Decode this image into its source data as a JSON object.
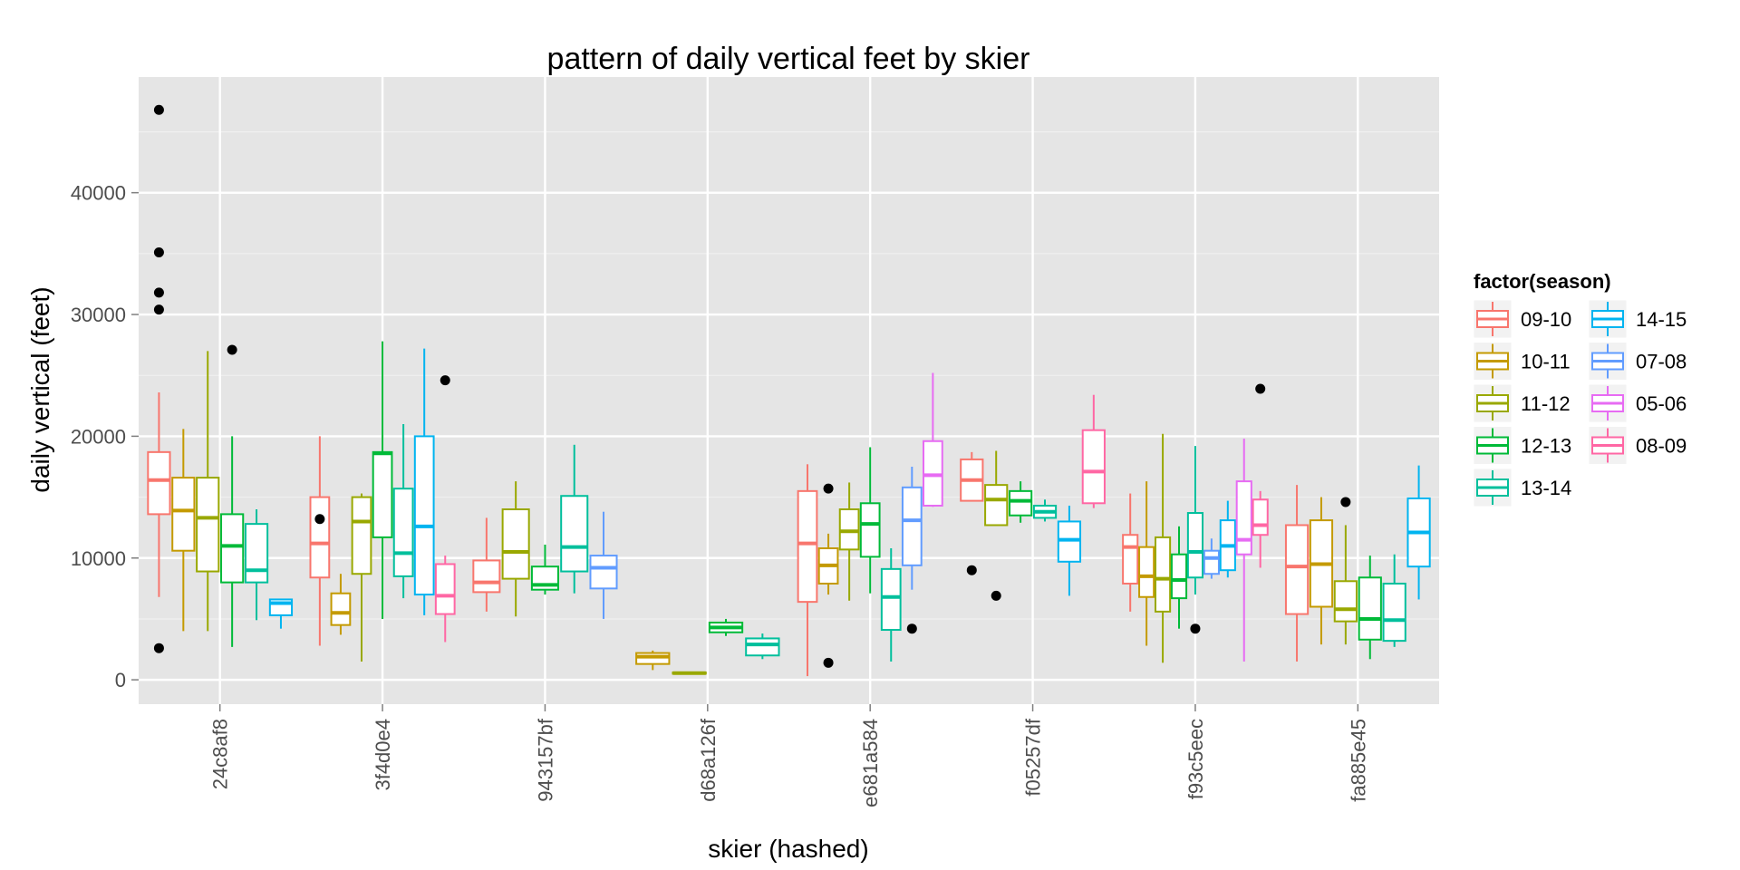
{
  "chart_data": {
    "type": "boxplot",
    "title": "pattern of daily vertical feet by skier",
    "xlabel": "skier (hashed)",
    "ylabel": "daily vertical (feet)",
    "ylim": [
      -2000,
      49500
    ],
    "yticks": [
      0,
      10000,
      20000,
      30000,
      40000
    ],
    "ytick_labels": [
      "0",
      "10000",
      "20000",
      "30000",
      "40000"
    ],
    "categories": [
      "24c8af8",
      "3f4d0e4",
      "943157bf",
      "d68a126f",
      "e681a584",
      "f05257df",
      "f93c5eec",
      "fa885e45"
    ],
    "grid": true,
    "legend": {
      "title": "factor(season)",
      "placement": "right",
      "entries": [
        {
          "name": "09-10",
          "color": "#F8766D"
        },
        {
          "name": "10-11",
          "color": "#C49A00"
        },
        {
          "name": "11-12",
          "color": "#99A800"
        },
        {
          "name": "12-13",
          "color": "#00BA38"
        },
        {
          "name": "13-14",
          "color": "#00BF9C"
        },
        {
          "name": "14-15",
          "color": "#00B4F0"
        },
        {
          "name": "07-08",
          "color": "#619CFF"
        },
        {
          "name": "05-06",
          "color": "#E76BF3"
        },
        {
          "name": "08-09",
          "color": "#FF67A4"
        }
      ]
    },
    "groups": [
      {
        "category": "24c8af8",
        "boxes": [
          {
            "season": "09-10",
            "low": 6800,
            "q1": 13600,
            "median": 16400,
            "q3": 18700,
            "high": 23600,
            "outliers": [
              2600,
              30400,
              31800,
              35100,
              46800
            ]
          },
          {
            "season": "10-11",
            "low": 4000,
            "q1": 10600,
            "median": 13900,
            "q3": 16600,
            "high": 20600,
            "outliers": []
          },
          {
            "season": "11-12",
            "low": 4000,
            "q1": 8900,
            "median": 13300,
            "q3": 16600,
            "high": 27000,
            "outliers": []
          },
          {
            "season": "12-13",
            "low": 2700,
            "q1": 8000,
            "median": 11000,
            "q3": 13600,
            "high": 20000,
            "outliers": [
              27100
            ]
          },
          {
            "season": "13-14",
            "low": 4900,
            "q1": 8000,
            "median": 9000,
            "q3": 12800,
            "high": 14000,
            "outliers": []
          },
          {
            "season": "14-15",
            "low": 4200,
            "q1": 5300,
            "median": 6300,
            "q3": 6600,
            "high": 6600,
            "outliers": []
          }
        ]
      },
      {
        "category": "3f4d0e4",
        "boxes": [
          {
            "season": "09-10",
            "low": 2800,
            "q1": 8400,
            "median": 11200,
            "q3": 15000,
            "high": 20000,
            "outliers": [
              13200
            ]
          },
          {
            "season": "10-11",
            "low": 3700,
            "q1": 4500,
            "median": 5500,
            "q3": 7100,
            "high": 8700,
            "outliers": []
          },
          {
            "season": "11-12",
            "low": 1500,
            "q1": 8700,
            "median": 13000,
            "q3": 15000,
            "high": 15300,
            "outliers": []
          },
          {
            "season": "12-13",
            "low": 5000,
            "q1": 11700,
            "median": 18600,
            "q3": 18700,
            "high": 27800,
            "outliers": []
          },
          {
            "season": "13-14",
            "low": 6700,
            "q1": 8500,
            "median": 10400,
            "q3": 15700,
            "high": 21000,
            "outliers": []
          },
          {
            "season": "14-15",
            "low": 5300,
            "q1": 7000,
            "median": 12600,
            "q3": 20000,
            "high": 27200,
            "outliers": []
          },
          {
            "season": "08-09",
            "low": 3100,
            "q1": 5400,
            "median": 6900,
            "q3": 9500,
            "high": 10200,
            "outliers": [
              24600
            ]
          }
        ]
      },
      {
        "category": "943157bf",
        "boxes": [
          {
            "season": "09-10",
            "low": 5600,
            "q1": 7200,
            "median": 8000,
            "q3": 9800,
            "high": 13300,
            "outliers": []
          },
          {
            "season": "11-12",
            "low": 5200,
            "q1": 8300,
            "median": 10500,
            "q3": 14000,
            "high": 16300,
            "outliers": []
          },
          {
            "season": "12-13",
            "low": 7000,
            "q1": 7400,
            "median": 7800,
            "q3": 9300,
            "high": 11100,
            "outliers": []
          },
          {
            "season": "13-14",
            "low": 7100,
            "q1": 8900,
            "median": 10900,
            "q3": 15100,
            "high": 19300,
            "outliers": []
          },
          {
            "season": "07-08",
            "low": 5000,
            "q1": 7500,
            "median": 9200,
            "q3": 10200,
            "high": 13800,
            "outliers": []
          }
        ]
      },
      {
        "category": "d68a126f",
        "boxes": [
          {
            "season": "10-11",
            "low": 800,
            "q1": 1300,
            "median": 1900,
            "q3": 2200,
            "high": 2400,
            "outliers": []
          },
          {
            "season": "11-12",
            "low": 450,
            "q1": 500,
            "median": 550,
            "q3": 600,
            "high": 650,
            "outliers": []
          },
          {
            "season": "12-13",
            "low": 3600,
            "q1": 3900,
            "median": 4300,
            "q3": 4700,
            "high": 5000,
            "outliers": []
          },
          {
            "season": "13-14",
            "low": 1700,
            "q1": 2000,
            "median": 2900,
            "q3": 3400,
            "high": 3800,
            "outliers": []
          }
        ]
      },
      {
        "category": "e681a584",
        "boxes": [
          {
            "season": "09-10",
            "low": 300,
            "q1": 6400,
            "median": 11200,
            "q3": 15500,
            "high": 17700,
            "outliers": []
          },
          {
            "season": "10-11",
            "low": 7000,
            "q1": 7900,
            "median": 9400,
            "q3": 10800,
            "high": 12000,
            "outliers": [
              1400,
              15700
            ]
          },
          {
            "season": "11-12",
            "low": 6500,
            "q1": 10700,
            "median": 12200,
            "q3": 14000,
            "high": 16200,
            "outliers": []
          },
          {
            "season": "12-13",
            "low": 7100,
            "q1": 10100,
            "median": 12800,
            "q3": 14500,
            "high": 19100,
            "outliers": []
          },
          {
            "season": "13-14",
            "low": 1500,
            "q1": 4100,
            "median": 6800,
            "q3": 9100,
            "high": 10800,
            "outliers": []
          },
          {
            "season": "07-08",
            "low": 7400,
            "q1": 9400,
            "median": 13100,
            "q3": 15800,
            "high": 17500,
            "outliers": [
              4200
            ]
          },
          {
            "season": "05-06",
            "low": 14200,
            "q1": 14300,
            "median": 16800,
            "q3": 19600,
            "high": 25200,
            "outliers": []
          }
        ]
      },
      {
        "category": "f05257df",
        "boxes": [
          {
            "season": "09-10",
            "low": 14700,
            "q1": 14700,
            "median": 16400,
            "q3": 18100,
            "high": 18700,
            "outliers": [
              9000
            ]
          },
          {
            "season": "11-12",
            "low": 12700,
            "q1": 12700,
            "median": 14800,
            "q3": 16000,
            "high": 18800,
            "outliers": [
              6900
            ]
          },
          {
            "season": "12-13",
            "low": 12900,
            "q1": 13500,
            "median": 14700,
            "q3": 15500,
            "high": 16300,
            "outliers": []
          },
          {
            "season": "13-14",
            "low": 13000,
            "q1": 13300,
            "median": 13800,
            "q3": 14300,
            "high": 14800,
            "outliers": []
          },
          {
            "season": "14-15",
            "low": 6900,
            "q1": 9700,
            "median": 11500,
            "q3": 13000,
            "high": 14300,
            "outliers": []
          },
          {
            "season": "08-09",
            "low": 14100,
            "q1": 14500,
            "median": 17100,
            "q3": 20500,
            "high": 23400,
            "outliers": []
          }
        ]
      },
      {
        "category": "f93c5eec",
        "boxes": [
          {
            "season": "09-10",
            "low": 5600,
            "q1": 7900,
            "median": 10900,
            "q3": 11900,
            "high": 15300,
            "outliers": []
          },
          {
            "season": "10-11",
            "low": 2800,
            "q1": 6800,
            "median": 8500,
            "q3": 10900,
            "high": 16300,
            "outliers": []
          },
          {
            "season": "11-12",
            "low": 1400,
            "q1": 5600,
            "median": 8300,
            "q3": 11700,
            "high": 20200,
            "outliers": []
          },
          {
            "season": "12-13",
            "low": 4200,
            "q1": 6700,
            "median": 8200,
            "q3": 10300,
            "high": 12600,
            "outliers": []
          },
          {
            "season": "13-14",
            "low": 7000,
            "q1": 8400,
            "median": 10500,
            "q3": 13700,
            "high": 19200,
            "outliers": [
              4200
            ]
          },
          {
            "season": "07-08",
            "low": 8300,
            "q1": 8700,
            "median": 10000,
            "q3": 10600,
            "high": 11600,
            "outliers": []
          },
          {
            "season": "14-15",
            "low": 8400,
            "q1": 9000,
            "median": 11000,
            "q3": 13100,
            "high": 14700,
            "outliers": []
          },
          {
            "season": "05-06",
            "low": 1500,
            "q1": 10300,
            "median": 11500,
            "q3": 16300,
            "high": 19800,
            "outliers": []
          },
          {
            "season": "08-09",
            "low": 9200,
            "q1": 11900,
            "median": 12700,
            "q3": 14800,
            "high": 15500,
            "outliers": [
              23900
            ]
          }
        ]
      },
      {
        "category": "fa885e45",
        "boxes": [
          {
            "season": "09-10",
            "low": 1500,
            "q1": 5400,
            "median": 9300,
            "q3": 12700,
            "high": 16000,
            "outliers": []
          },
          {
            "season": "10-11",
            "low": 2900,
            "q1": 6000,
            "median": 9500,
            "q3": 13100,
            "high": 15000,
            "outliers": []
          },
          {
            "season": "11-12",
            "low": 2900,
            "q1": 4800,
            "median": 5800,
            "q3": 8100,
            "high": 12700,
            "outliers": [
              14600
            ]
          },
          {
            "season": "12-13",
            "low": 1700,
            "q1": 3300,
            "median": 5000,
            "q3": 8400,
            "high": 10200,
            "outliers": []
          },
          {
            "season": "13-14",
            "low": 2700,
            "q1": 3200,
            "median": 4900,
            "q3": 7900,
            "high": 10300,
            "outliers": []
          },
          {
            "season": "14-15",
            "low": 6600,
            "q1": 9300,
            "median": 12100,
            "q3": 14900,
            "high": 17600,
            "outliers": []
          }
        ]
      }
    ]
  }
}
